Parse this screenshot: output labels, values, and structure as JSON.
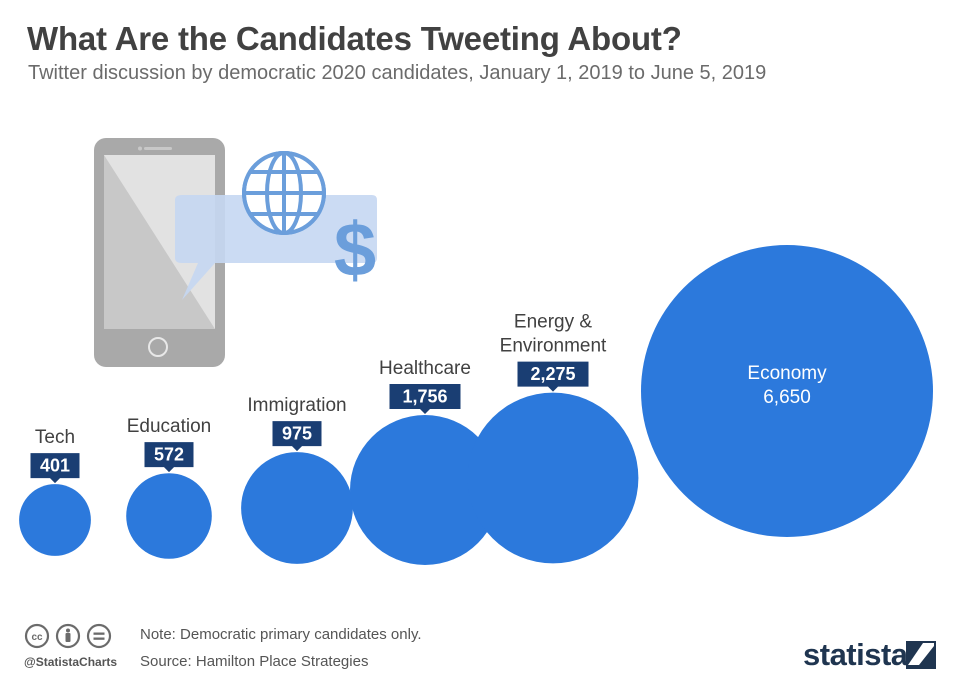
{
  "title": "What Are the Candidates Tweeting About?",
  "subtitle": "Twitter discussion by democratic 2020 candidates, January 1, 2019 to June 5, 2019",
  "chart_data": {
    "type": "bubble",
    "title": "What Are the Candidates Tweeting About?",
    "categories": [
      [
        "Tech"
      ],
      [
        "Education"
      ],
      [
        "Immigration"
      ],
      [
        "Healthcare"
      ],
      [
        "Energy &",
        "Environment"
      ],
      [
        "Economy"
      ]
    ],
    "values": [
      401,
      572,
      975,
      1756,
      2275,
      6650
    ],
    "value_labels": [
      "401",
      "572",
      "975",
      "1,756",
      "2,275",
      "6,650"
    ]
  },
  "colors": {
    "bubble": "#2c79dc",
    "label_box": "#1a3e73",
    "text": "#414141",
    "phone_frame": "#a9a9a9",
    "speech_bubble": "#c5d7f2",
    "icon": "#6b9edb"
  },
  "icons": [
    "smartphone-icon",
    "speech-bubble-icon",
    "globe-icon",
    "dollar-icon",
    "cc-icon",
    "by-icon",
    "nd-icon",
    "statista-logo-icon"
  ],
  "footer": {
    "note": "Note: Democratic primary candidates only.",
    "source": "Source: Hamilton Place Strategies",
    "handle": "@StatistaCharts",
    "brand": "statista"
  }
}
